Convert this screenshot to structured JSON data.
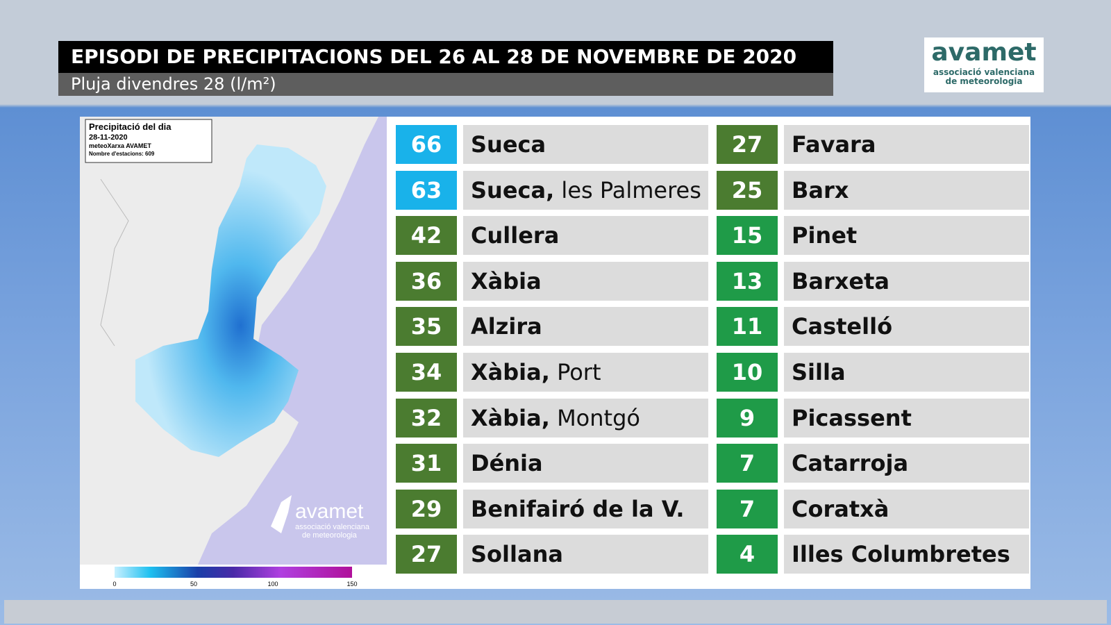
{
  "header": {
    "title": "EPISODI DE PRECIPITACIONS DEL 26 AL 28 DE NOVEMBRE DE 2020",
    "subtitle": "Pluja divendres 28 (l/m²)"
  },
  "logo": {
    "name": "avamet",
    "tagline": [
      "associació valenciana",
      "de meteorologia"
    ]
  },
  "map": {
    "box": {
      "title": "Precipitació del dia",
      "date": "28-11-2020",
      "network": "meteoXarxa AVAMET",
      "stations": "Nombre d'estacions: 609"
    },
    "watermark": {
      "name": "avamet",
      "tagline": [
        "associació valenciana",
        "de meteorologia"
      ]
    },
    "scale": {
      "ticks": [
        0,
        50,
        100,
        150
      ]
    }
  },
  "table": {
    "columns": [
      [
        {
          "value": 66,
          "name": "Sueca",
          "color": "#19b2ea"
        },
        {
          "value": 63,
          "name": "Sueca,",
          "detail": "les Palmeres",
          "color": "#19b2ea"
        },
        {
          "value": 42,
          "name": "Cullera",
          "color": "#4b7c30"
        },
        {
          "value": 36,
          "name": "Xàbia",
          "color": "#4b7c30"
        },
        {
          "value": 35,
          "name": "Alzira",
          "color": "#4b7c30"
        },
        {
          "value": 34,
          "name": "Xàbia,",
          "detail": "Port",
          "color": "#4b7c30"
        },
        {
          "value": 32,
          "name": "Xàbia,",
          "detail": "Montgó",
          "color": "#4b7c30"
        },
        {
          "value": 31,
          "name": "Dénia",
          "color": "#4b7c30"
        },
        {
          "value": 29,
          "name": "Benifairó de la V.",
          "color": "#4b7c30"
        },
        {
          "value": 27,
          "name": "Sollana",
          "color": "#4b7c30"
        }
      ],
      [
        {
          "value": 27,
          "name": "Favara",
          "color": "#4b7c30"
        },
        {
          "value": 25,
          "name": "Barx",
          "color": "#4b7c30"
        },
        {
          "value": 15,
          "name": "Pinet",
          "color": "#1f9b48"
        },
        {
          "value": 13,
          "name": "Barxeta",
          "color": "#1f9b48"
        },
        {
          "value": 11,
          "name": "Castelló",
          "color": "#1f9b48"
        },
        {
          "value": 10,
          "name": "Silla",
          "color": "#1f9b48"
        },
        {
          "value": 9,
          "name": "Picassent",
          "color": "#1f9b48"
        },
        {
          "value": 7,
          "name": "Catarroja",
          "color": "#1f9b48"
        },
        {
          "value": 7,
          "name": "Coratxà",
          "color": "#1f9b48"
        },
        {
          "value": 4,
          "name": "Illes Columbretes",
          "color": "#1f9b48"
        }
      ]
    ]
  }
}
